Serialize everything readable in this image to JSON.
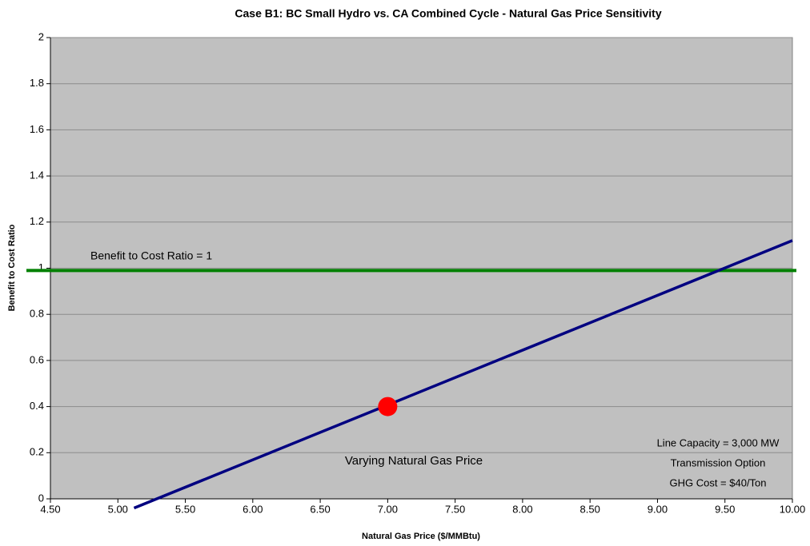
{
  "chart_data": {
    "type": "line",
    "title": "Case B1: BC Small Hydro vs. CA Combined Cycle - Natural Gas Price Sensitivity",
    "xlabel": "Natural Gas Price ($/MMBtu)",
    "ylabel": "Benefit to Cost Ratio",
    "plot_background": "#c0c0c0",
    "grid": true,
    "xlim": [
      4.5,
      10
    ],
    "xticks": [
      {
        "value": 4.5,
        "label": "4.50"
      },
      {
        "value": 5,
        "label": "5.00"
      },
      {
        "value": 5.5,
        "label": "5.50"
      },
      {
        "value": 6,
        "label": "6.00"
      },
      {
        "value": 6.5,
        "label": "6.50"
      },
      {
        "value": 7,
        "label": "7.00"
      },
      {
        "value": 7.5,
        "label": "7.50"
      },
      {
        "value": 8,
        "label": "8.00"
      },
      {
        "value": 8.5,
        "label": "8.50"
      },
      {
        "value": 9,
        "label": "9.00"
      },
      {
        "value": 9.5,
        "label": "9.50"
      },
      {
        "value": 10,
        "label": "10.00"
      }
    ],
    "ylim": [
      0,
      2
    ],
    "yticks": [
      0,
      0.2,
      0.4,
      0.6,
      0.8,
      1,
      1.2,
      1.4,
      1.6,
      1.8,
      2
    ],
    "series": [
      {
        "color": "#000080",
        "x": [
          5.12,
          10
        ],
        "values": [
          -0.04,
          1.12
        ]
      }
    ],
    "reference_line": {
      "value": 0.99,
      "color": "#008000",
      "label": "Benefit to Cost Ratio = 1"
    },
    "point": {
      "x": 7,
      "value": 0.4,
      "color": "#ff0000",
      "label": "Varying Natural Gas Price"
    },
    "notes": [
      "Line Capacity = 3,000 MW",
      "Transmission Option",
      "GHG Cost = $40/Ton"
    ]
  }
}
